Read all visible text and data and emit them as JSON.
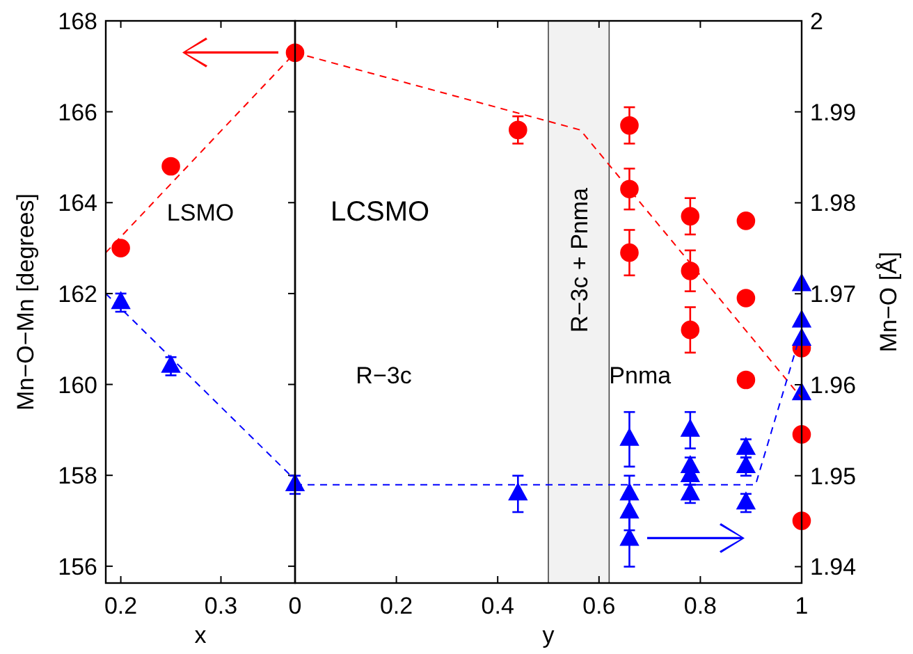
{
  "chart_data": [
    {
      "type": "scatter",
      "xlabel": "x",
      "ylabel": "Mn−O−Mn [degrees]",
      "xlim": [
        0.185,
        0.374
      ],
      "xticks": [
        0.2,
        0.3
      ],
      "ylim": [
        155.63,
        168
      ],
      "yticks": [
        156,
        158,
        160,
        162,
        164,
        166,
        168
      ],
      "grid": false,
      "annotations": [
        "LSMO"
      ],
      "series": [
        {
          "color": "#ff0000",
          "marker": "circle",
          "x": [
            0.2,
            0.25
          ],
          "values": [
            163.0,
            164.8
          ]
        },
        {
          "color": "#0000ff",
          "marker": "triangle",
          "x": [
            0.2,
            0.25
          ],
          "values": [
            161.8,
            160.4
          ],
          "errors": [
            0.2,
            0.2
          ]
        },
        {
          "type": "line",
          "color": "#ff0000",
          "line_style": "dashed",
          "marker": "none",
          "x": [
            0.185,
            0.374
          ],
          "values": [
            162.9,
            167.3
          ]
        },
        {
          "type": "line",
          "color": "#0000ff",
          "line_style": "dashed",
          "marker": "none",
          "x": [
            0.185,
            0.374
          ],
          "values": [
            162.0,
            157.9
          ]
        }
      ]
    },
    {
      "type": "scatter",
      "xlabel": "y",
      "y2label": "Mn−O [Å]",
      "xlim": [
        0,
        1
      ],
      "xticks": [
        0,
        0.2,
        0.4,
        0.6,
        0.8,
        1
      ],
      "ylim": [
        155.63,
        168
      ],
      "y2lim": [
        1.9382,
        2
      ],
      "y2ticks": [
        1.94,
        1.95,
        1.96,
        1.97,
        1.98,
        1.99,
        2
      ],
      "grid": false,
      "annotations": [
        "LCSMO",
        "R−3c",
        "Pnma"
      ],
      "bands": [
        {
          "axis": "x",
          "from": 0.5,
          "to": 0.62,
          "label": "R−3c + Pnma",
          "color": "#f2f2f2"
        }
      ],
      "series": [
        {
          "color": "#ff0000",
          "marker": "circle",
          "x": [
            0,
            0.44,
            0.66,
            0.78,
            0.89,
            1
          ],
          "values": [
            167.3,
            165.6,
            164.3,
            162.5,
            161.9,
            158.9
          ],
          "errors": [
            null,
            0.3,
            0.45,
            0.45,
            null,
            null
          ]
        },
        {
          "color": "#ff0000",
          "marker": "circle",
          "x": [
            0.66,
            0.66,
            0.78,
            0.78,
            0.89,
            0.89,
            1,
            1
          ],
          "values": [
            165.7,
            162.9,
            163.7,
            161.2,
            163.6,
            160.1,
            160.8,
            157.0
          ],
          "errors": [
            0.4,
            0.5,
            0.4,
            0.5,
            0.1,
            0.1,
            null,
            null
          ]
        },
        {
          "color": "#0000ff",
          "marker": "triangle",
          "axis": "y2",
          "x": [
            0,
            0.44,
            0.66,
            0.78,
            0.89,
            1
          ],
          "values": [
            1.949,
            1.948,
            1.948,
            1.951,
            1.951,
            1.965
          ],
          "errors": [
            0.001,
            0.002,
            0.002,
            0.001,
            0.001,
            null
          ]
        },
        {
          "color": "#0000ff",
          "marker": "triangle",
          "axis": "y2",
          "x": [
            0.66,
            0.66,
            0.66,
            0.78,
            0.78,
            0.78,
            0.89,
            0.89,
            1,
            1,
            1
          ],
          "values": [
            1.954,
            1.946,
            1.943,
            1.955,
            1.95,
            1.948,
            1.953,
            1.947,
            1.971,
            1.967,
            1.959
          ],
          "errors": [
            0.003,
            0.002,
            0.003,
            0.002,
            0.001,
            0.001,
            0.001,
            0.001,
            null,
            null,
            null
          ]
        },
        {
          "type": "line",
          "color": "#ff0000",
          "line_style": "dashed",
          "marker": "none",
          "x": [
            0,
            0.563,
            1
          ],
          "values": [
            167.3,
            165.6,
            159.7
          ]
        },
        {
          "type": "line",
          "color": "#0000ff",
          "line_style": "dashed",
          "marker": "none",
          "axis": "y2",
          "x": [
            0,
            0.909,
            1
          ],
          "values": [
            1.949,
            1.949,
            1.966
          ]
        }
      ]
    }
  ]
}
